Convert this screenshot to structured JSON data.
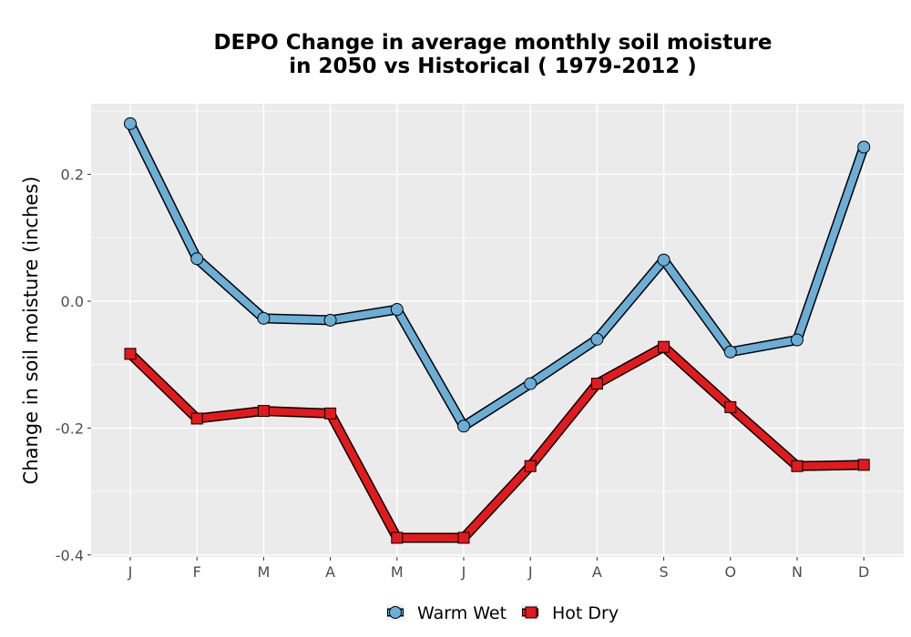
{
  "chart_data": {
    "type": "line",
    "title_line1": "DEPO  Change in average monthly soil moisture",
    "title_line2": "in 2050 vs Historical ( 1979-2012 )",
    "xlabel": "",
    "ylabel": "Change in soil moisture (inches)",
    "categories": [
      "J",
      "F",
      "M",
      "A",
      "M",
      "J",
      "J",
      "A",
      "S",
      "O",
      "N",
      "D"
    ],
    "ylim": [
      -0.4,
      0.31
    ],
    "yticks": [
      -0.4,
      -0.2,
      0.0,
      0.2
    ],
    "ytick_labels": [
      "-0.4",
      "-0.2",
      "0.0",
      "0.2"
    ],
    "grid": true,
    "legend_position": "bottom",
    "series": [
      {
        "name": "Warm Wet",
        "marker": "circle",
        "color": "#6baed6",
        "values": [
          0.28,
          0.067,
          -0.027,
          -0.03,
          -0.013,
          -0.197,
          -0.13,
          -0.06,
          0.065,
          -0.08,
          -0.061,
          0.243
        ]
      },
      {
        "name": "Hot Dry",
        "marker": "square",
        "color": "#e31a1c",
        "values": [
          -0.083,
          -0.185,
          -0.173,
          -0.177,
          -0.373,
          -0.373,
          -0.26,
          -0.13,
          -0.072,
          -0.167,
          -0.26,
          -0.258
        ]
      }
    ]
  }
}
